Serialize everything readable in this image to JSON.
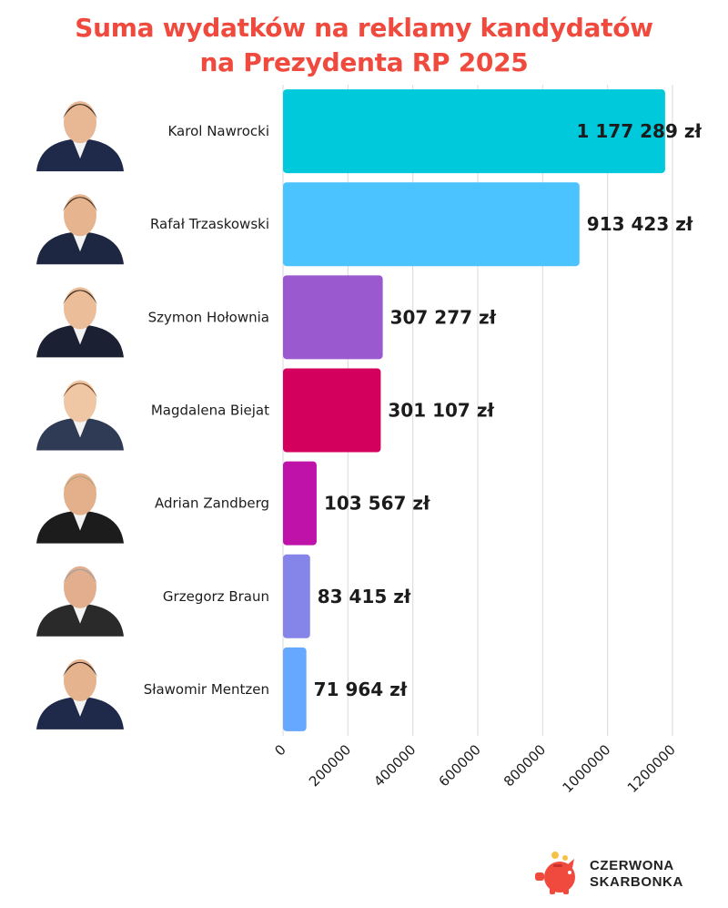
{
  "title_line1": "Suma wydatków na reklamy kandydatów",
  "title_line2": "na Prezydenta RP 2025",
  "brand": {
    "line1": "CZERWONA",
    "line2": "SKARBONKA"
  },
  "chart_data": {
    "type": "bar",
    "orientation": "horizontal",
    "title": "Suma wydatków na reklamy kandydatów na Prezydenta RP 2025",
    "categories": [
      "Karol Nawrocki",
      "Rafał Trzaskowski",
      "Szymon Hołownia",
      "Magdalena Biejat",
      "Adrian Zandberg",
      "Grzegorz Braun",
      "Sławomir Mentzen"
    ],
    "values": [
      1177289,
      913423,
      307277,
      301107,
      103567,
      83415,
      71964
    ],
    "value_labels": [
      "1 177 289 zł",
      "913 423 zł",
      "307 277 zł",
      "301 107 zł",
      "103 567 zł",
      "83 415 zł",
      "71 964 zł"
    ],
    "colors": [
      "#00c9dc",
      "#4ac3ff",
      "#9b59cf",
      "#d4005d",
      "#be12a9",
      "#8584e9",
      "#66a8ff"
    ],
    "xticks": [
      "0",
      "200000",
      "400000",
      "600000",
      "800000",
      "1000000",
      "1200000"
    ],
    "xlim": [
      0,
      1200000
    ],
    "grid": true
  }
}
